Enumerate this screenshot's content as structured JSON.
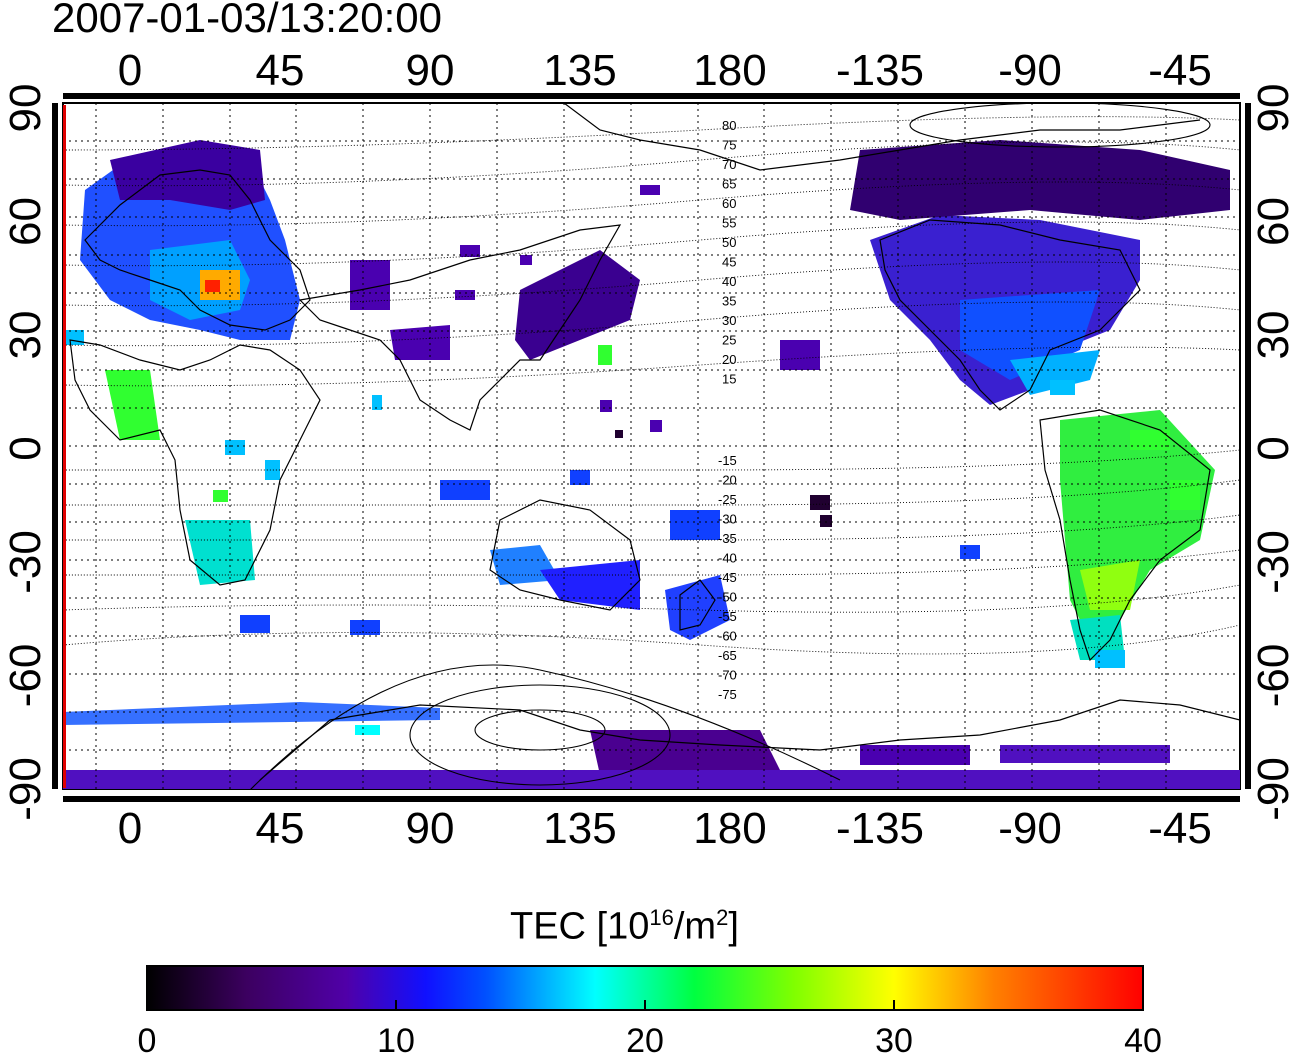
{
  "timestamp": "2007-01-03/13:20:00",
  "map": {
    "lon_ticks_top": [
      "0",
      "45",
      "90",
      "135",
      "180",
      "-135",
      "-90",
      "-45"
    ],
    "lon_ticks_bottom": [
      "0",
      "45",
      "90",
      "135",
      "180",
      "-135",
      "-90",
      "-45"
    ],
    "lat_ticks_left": [
      "90",
      "60",
      "30",
      "0",
      "-30",
      "-60",
      "-90"
    ],
    "lat_ticks_right": [
      "90",
      "60",
      "30",
      "0",
      "-30",
      "-60",
      "-90"
    ],
    "contour_labels_north": [
      "80",
      "75",
      "70",
      "65",
      "60",
      "55",
      "50",
      "45",
      "40",
      "35",
      "30",
      "25",
      "20",
      "15"
    ],
    "contour_labels_south": [
      "-15",
      "-20",
      "-25",
      "-30",
      "-35",
      "-40",
      "-45",
      "-50",
      "-55",
      "-60",
      "-65",
      "-70",
      "-75"
    ],
    "terminator_line_color": "#e00000",
    "grid": "dotted"
  },
  "colorbar": {
    "title_prefix": "TEC  [10",
    "title_exp1": "16",
    "title_mid": "/m",
    "title_exp2": "2",
    "title_suffix": "]",
    "ticks": [
      "0",
      "10",
      "20",
      "30",
      "40"
    ],
    "range": [
      0,
      40
    ],
    "colors": [
      "#000000",
      "#3c0060",
      "#5000a8",
      "#0030ff",
      "#00a8ff",
      "#00ffff",
      "#00ff40",
      "#80ff00",
      "#ffff00",
      "#ff8000",
      "#ff0000"
    ]
  }
}
